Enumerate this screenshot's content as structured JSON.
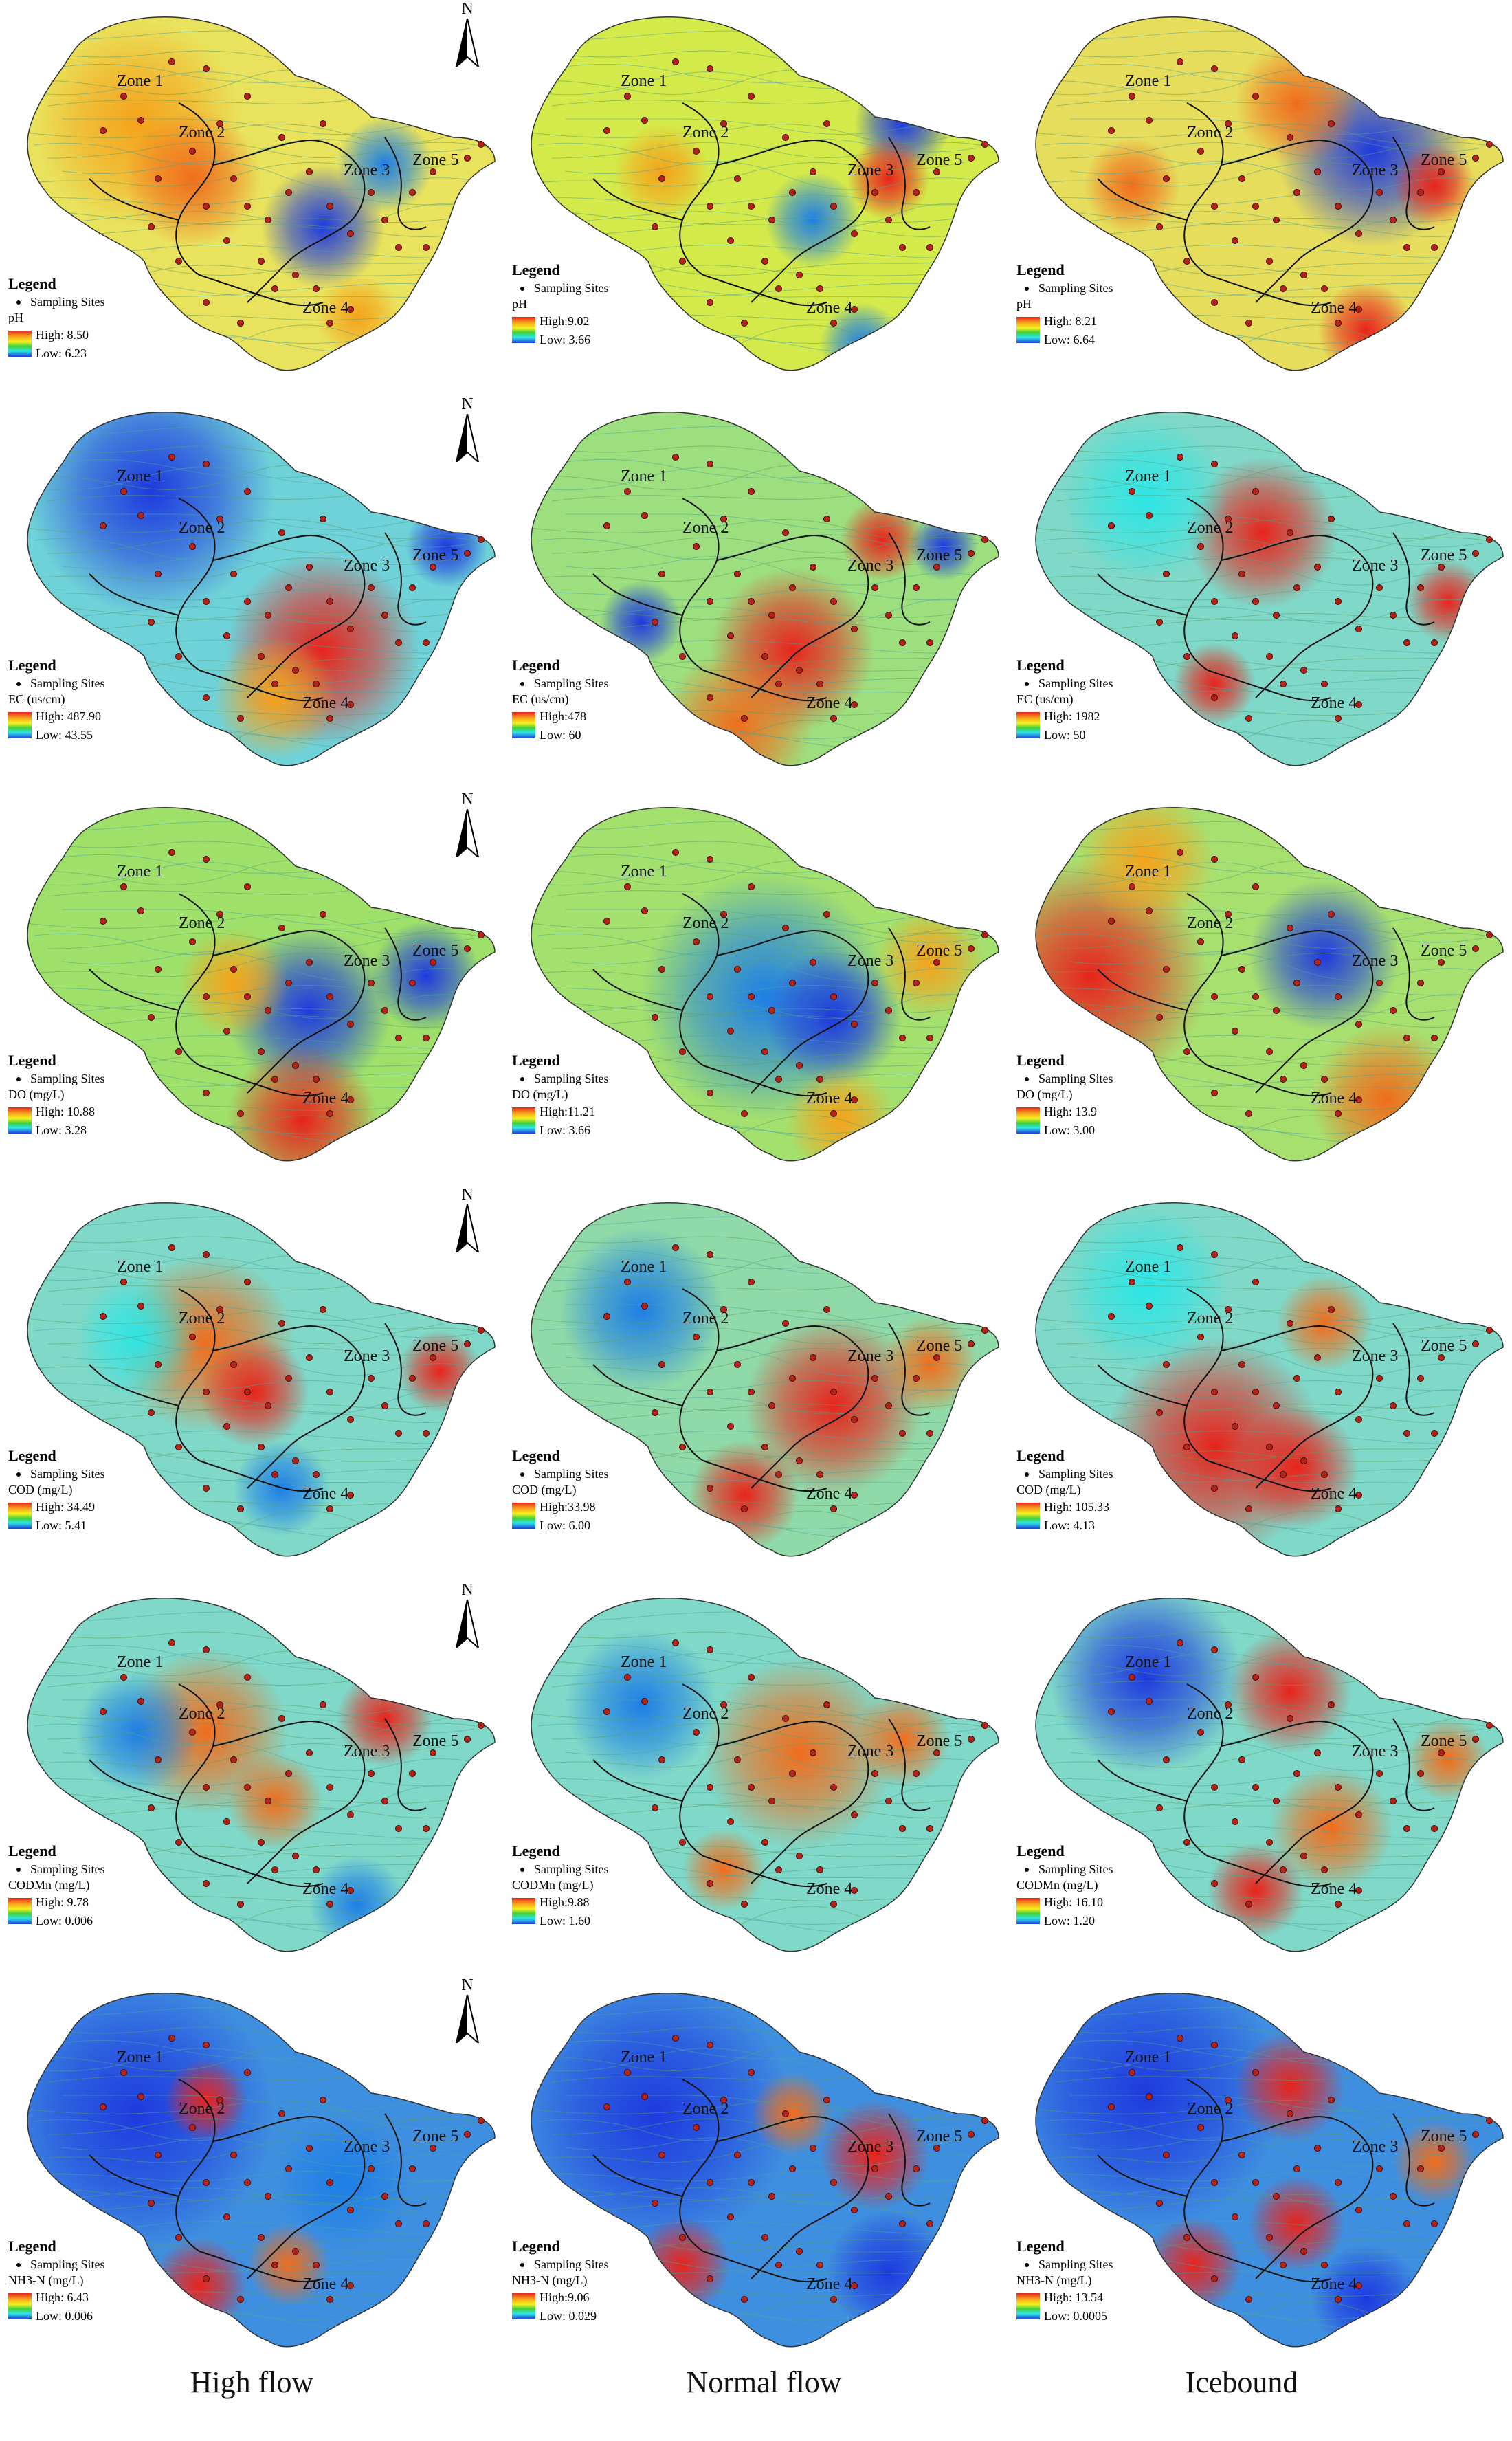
{
  "legend_title": "Legend",
  "sites_label": "Sampling Sites",
  "zones": [
    "Zone 1",
    "Zone 2",
    "Zone 3",
    "Zone 4",
    "Zone 5"
  ],
  "north_label": "N",
  "columns": [
    "High flow",
    "Normal flow",
    "Icebound"
  ],
  "ramp_colors": [
    "#e8241c",
    "#f7a21b",
    "#f6f11e",
    "#3ed13b",
    "#2ce6e6",
    "#1e3adf"
  ],
  "rows": [
    {
      "variable": "pH",
      "panels": [
        {
          "high": "High: 8.50",
          "low": "Low: 6.23"
        },
        {
          "high": "High:9.02",
          "low": "Low: 3.66"
        },
        {
          "high": "High: 8.21",
          "low": "Low: 6.64"
        }
      ]
    },
    {
      "variable": "EC (us/cm)",
      "panels": [
        {
          "high": "High: 487.90",
          "low": "Low: 43.55"
        },
        {
          "high": "High:478",
          "low": "Low: 60"
        },
        {
          "high": "High: 1982",
          "low": "Low: 50"
        }
      ]
    },
    {
      "variable": "DO (mg/L)",
      "panels": [
        {
          "high": "High: 10.88",
          "low": "Low: 3.28"
        },
        {
          "high": "High:11.21",
          "low": "Low: 3.66"
        },
        {
          "high": "High: 13.9",
          "low": "Low: 3.00"
        }
      ]
    },
    {
      "variable": "COD (mg/L)",
      "panels": [
        {
          "high": "High: 34.49",
          "low": "Low: 5.41"
        },
        {
          "high": "High:33.98",
          "low": "Low: 6.00"
        },
        {
          "high": "High: 105.33",
          "low": "Low: 4.13"
        }
      ]
    },
    {
      "variable": "CODMn (mg/L)",
      "panels": [
        {
          "high": "High: 9.78",
          "low": "Low: 0.006"
        },
        {
          "high": "High:9.88",
          "low": "Low: 1.60"
        },
        {
          "high": "High: 16.10",
          "low": "Low: 1.20"
        }
      ]
    },
    {
      "variable": "NH3-N (mg/L)",
      "panels": [
        {
          "high": "High: 6.43",
          "low": "Low: 0.006"
        },
        {
          "high": "High:9.06",
          "low": "Low: 0.029"
        },
        {
          "high": "High: 13.54",
          "low": "Low: 0.0005"
        }
      ]
    }
  ]
}
